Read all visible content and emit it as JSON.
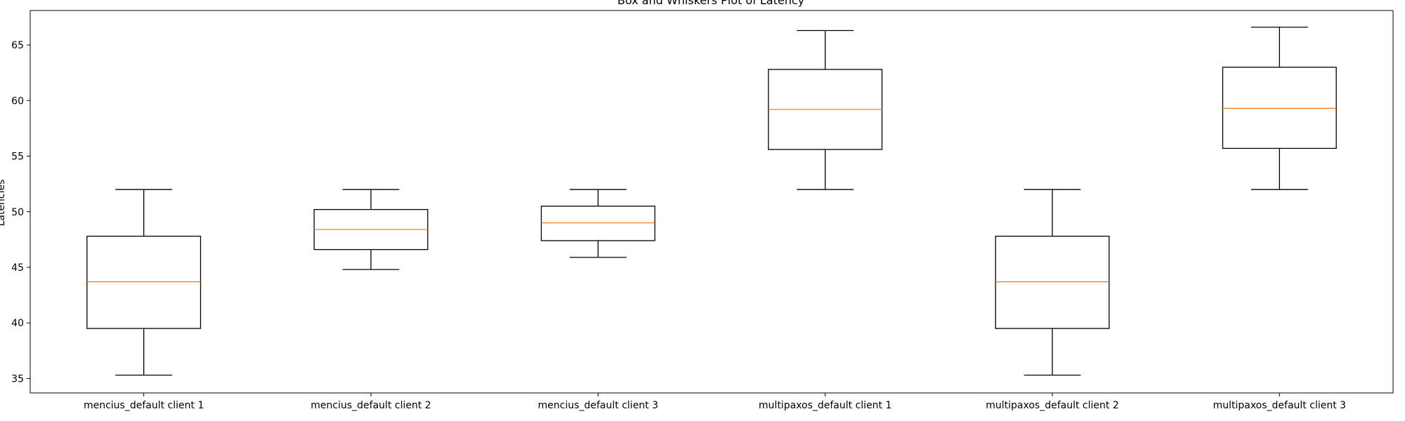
{
  "chart_data": {
    "type": "box",
    "title": "Box and Whiskers Plot of Latency",
    "xlabel": "",
    "ylabel": "Latencies",
    "ylim": [
      33.7,
      68.1
    ],
    "yticks": [
      35,
      40,
      45,
      50,
      55,
      60,
      65
    ],
    "grid": false,
    "categories": [
      "mencius_default client 1",
      "mencius_default client 2",
      "mencius_default client 3",
      "multipaxos_default client 1",
      "multipaxos_default client 2",
      "multipaxos_default client 3"
    ],
    "boxes": [
      {
        "category": "mencius_default client 1",
        "whisker_low": 35.3,
        "q1": 39.5,
        "median": 43.7,
        "q3": 47.8,
        "whisker_high": 52.0
      },
      {
        "category": "mencius_default client 2",
        "whisker_low": 44.8,
        "q1": 46.6,
        "median": 48.4,
        "q3": 50.2,
        "whisker_high": 52.0
      },
      {
        "category": "mencius_default client 3",
        "whisker_low": 45.9,
        "q1": 47.4,
        "median": 49.0,
        "q3": 50.5,
        "whisker_high": 52.0
      },
      {
        "category": "multipaxos_default client 1",
        "whisker_low": 52.0,
        "q1": 55.6,
        "median": 59.2,
        "q3": 62.8,
        "whisker_high": 66.3
      },
      {
        "category": "multipaxos_default client 2",
        "whisker_low": 35.3,
        "q1": 39.5,
        "median": 43.7,
        "q3": 47.8,
        "whisker_high": 52.0
      },
      {
        "category": "multipaxos_default client 3",
        "whisker_low": 52.0,
        "q1": 55.7,
        "median": 59.3,
        "q3": 63.0,
        "whisker_high": 66.6
      }
    ],
    "colors": {
      "box": "#000000",
      "median": "#ff7f0e",
      "axes": "#000000"
    }
  }
}
